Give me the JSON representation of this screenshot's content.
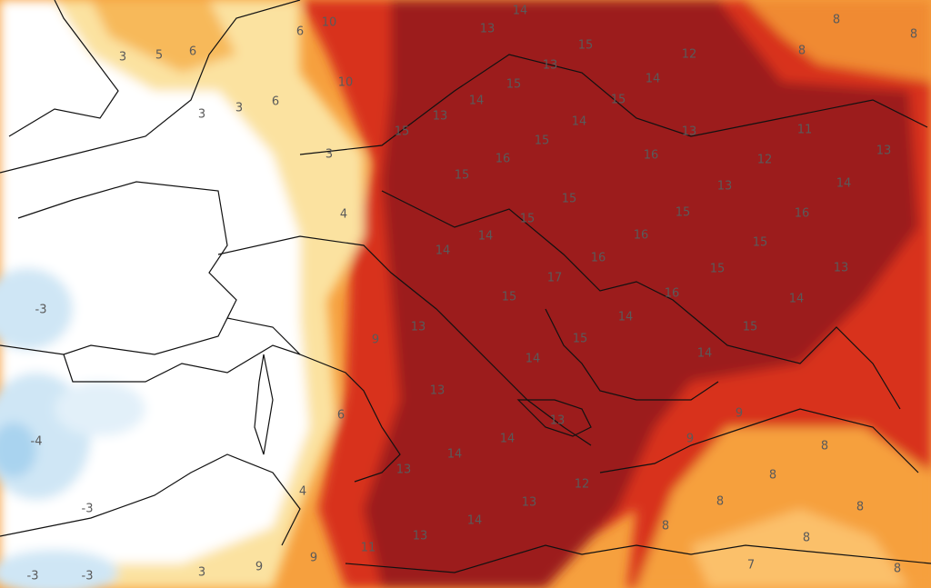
{
  "labels": [
    "3",
    "5",
    "6",
    "10",
    "6",
    "14",
    "13",
    "15",
    "13",
    "12",
    "8",
    "8",
    "8",
    "10",
    "6",
    "3",
    "3",
    "15",
    "14",
    "15",
    "14",
    "13",
    "15",
    "14",
    "13",
    "11",
    "13",
    "3",
    "15",
    "16",
    "16",
    "12",
    "15",
    "13",
    "14",
    "4",
    "15",
    "15",
    "15",
    "16",
    "14",
    "14",
    "16",
    "16",
    "15",
    "15",
    "13",
    "17",
    "-3",
    "15",
    "16",
    "14",
    "14",
    "15",
    "13",
    "9",
    "15",
    "14",
    "14",
    "13",
    "6",
    "9",
    "13",
    "14",
    "9",
    "-4",
    "8",
    "14",
    "13",
    "8",
    "12",
    "4",
    "13",
    "8",
    "8",
    "-3",
    "14",
    "13",
    "8",
    "8",
    "11",
    "9",
    "7",
    "3",
    "9",
    "-3",
    "-3",
    "8"
  ]
}
